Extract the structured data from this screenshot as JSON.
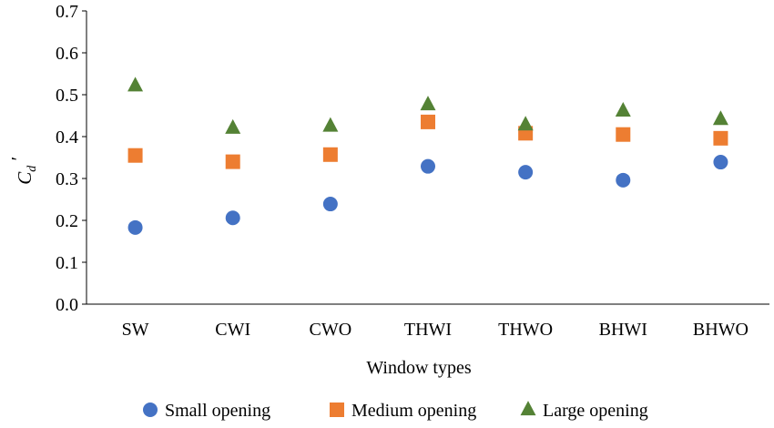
{
  "chart_data": {
    "type": "scatter",
    "categories": [
      "SW",
      "CWI",
      "CWO",
      "THWI",
      "THWO",
      "BHWI",
      "BHWO"
    ],
    "series": [
      {
        "name": "Small opening",
        "marker": "circle",
        "color": "#4472C4",
        "values": [
          0.183,
          0.206,
          0.239,
          0.329,
          0.315,
          0.296,
          0.339
        ]
      },
      {
        "name": "Medium opening",
        "marker": "square",
        "color": "#ED7D31",
        "values": [
          0.355,
          0.34,
          0.357,
          0.435,
          0.408,
          0.405,
          0.396
        ]
      },
      {
        "name": "Large opening",
        "marker": "triangle",
        "color": "#548235",
        "values": [
          0.521,
          0.42,
          0.425,
          0.476,
          0.428,
          0.461,
          0.441
        ]
      }
    ],
    "title": "",
    "xlabel": "Window types",
    "ylabel": {
      "main": "C",
      "subscript": "d",
      "prime": "′"
    },
    "ylim": [
      0.0,
      0.7
    ],
    "yticks": [
      "0.0",
      "0.1",
      "0.2",
      "0.3",
      "0.4",
      "0.5",
      "0.6",
      "0.7"
    ],
    "grid": false,
    "legend_position": "bottom"
  }
}
